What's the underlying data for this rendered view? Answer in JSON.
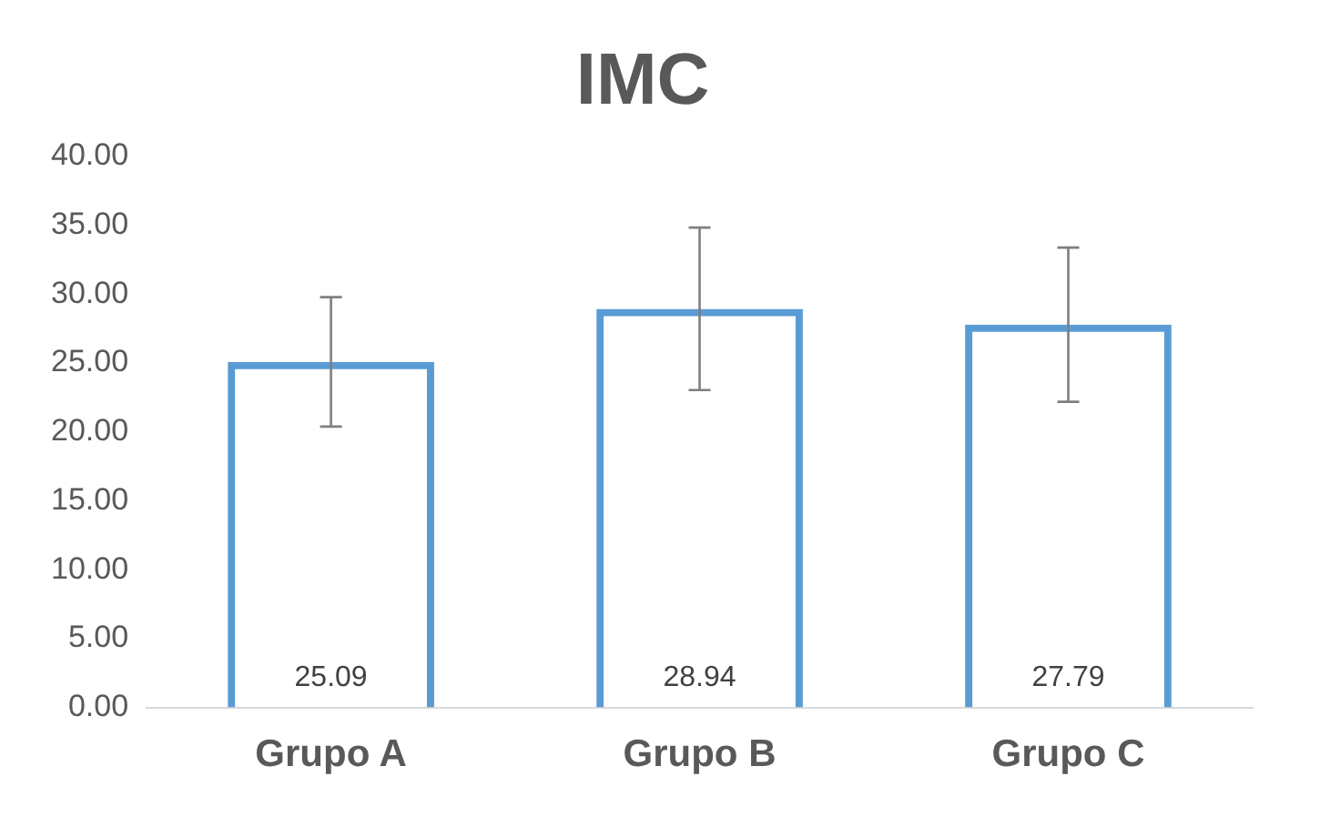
{
  "chart_data": {
    "type": "bar",
    "title": "IMC",
    "categories": [
      "Grupo A",
      "Grupo B",
      "Grupo C"
    ],
    "values": [
      25.09,
      28.94,
      27.79
    ],
    "errors": [
      4.7,
      5.9,
      5.6
    ],
    "color": "#5b9bd5",
    "ylim": [
      0,
      40
    ],
    "yticks": [
      {
        "value": 0,
        "label": "0.00"
      },
      {
        "value": 5,
        "label": "5.00"
      },
      {
        "value": 10,
        "label": "10.00"
      },
      {
        "value": 15,
        "label": "15.00"
      },
      {
        "value": 20,
        "label": "20.00"
      },
      {
        "value": 25,
        "label": "25.00"
      },
      {
        "value": 30,
        "label": "30.00"
      },
      {
        "value": 35,
        "label": "35.00"
      },
      {
        "value": 40,
        "label": "40.00"
      }
    ],
    "data_labels": true,
    "grid": false,
    "legend": false
  }
}
